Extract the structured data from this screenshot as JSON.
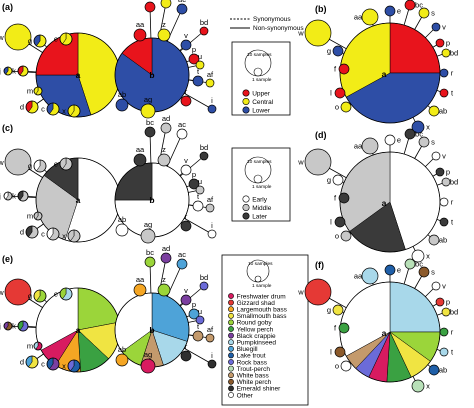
{
  "panels": [
    "(a)",
    "(b)",
    "(c)",
    "(d)",
    "(e)",
    "(f)"
  ],
  "lines_legend": {
    "synonymous": "Synonymous",
    "non_synonymous": "Non-synonymous"
  },
  "size_legend": {
    "large": "10 samples",
    "small": "1 sample"
  },
  "region_legend": [
    {
      "label": "Upper",
      "color": "#e8141c"
    },
    {
      "label": "Central",
      "color": "#f2ec17"
    },
    {
      "label": "Lower",
      "color": "#2e4ea6"
    }
  ],
  "time_legend": [
    {
      "label": "Early",
      "color": "#ffffff"
    },
    {
      "label": "Middle",
      "color": "#c8c8c8"
    },
    {
      "label": "Later",
      "color": "#3a3a3a"
    }
  ],
  "species_legend": [
    {
      "label": "Freshwater drum",
      "color": "#d81b60"
    },
    {
      "label": "Gizzard shad",
      "color": "#e53935"
    },
    {
      "label": "Largemouth bass",
      "color": "#f5a623"
    },
    {
      "label": "Smallmouth bass",
      "color": "#f0e442"
    },
    {
      "label": "Round goby",
      "color": "#9bd53a"
    },
    {
      "label": "Yellow perch",
      "color": "#3aa142"
    },
    {
      "label": "Black crappie",
      "color": "#7b3fa0"
    },
    {
      "label": "Pumpkinseed",
      "color": "#a8d8ea"
    },
    {
      "label": "Bluegill",
      "color": "#4ea3d8"
    },
    {
      "label": "Lake trout",
      "color": "#1f5fa8"
    },
    {
      "label": "Rock bass",
      "color": "#6b6bd8"
    },
    {
      "label": "Trout-perch",
      "color": "#b8e0b8"
    },
    {
      "label": "White bass",
      "color": "#c49a6c"
    },
    {
      "label": "White perch",
      "color": "#8c5a2b"
    },
    {
      "label": "Emerald shiner",
      "color": "#2f2f2f"
    },
    {
      "label": "Other",
      "color": "#ffffff"
    }
  ],
  "haplotype_labels": [
    "a",
    "b",
    "c",
    "d",
    "e",
    "f",
    "g",
    "h",
    "i",
    "j",
    "k",
    "l",
    "m",
    "n",
    "o",
    "p",
    "q",
    "r",
    "s",
    "t",
    "u",
    "v",
    "w",
    "x",
    "y",
    "z",
    "aa",
    "ab",
    "ac",
    "ad",
    "ae",
    "af",
    "ag",
    "bc",
    "bd",
    "be"
  ]
}
